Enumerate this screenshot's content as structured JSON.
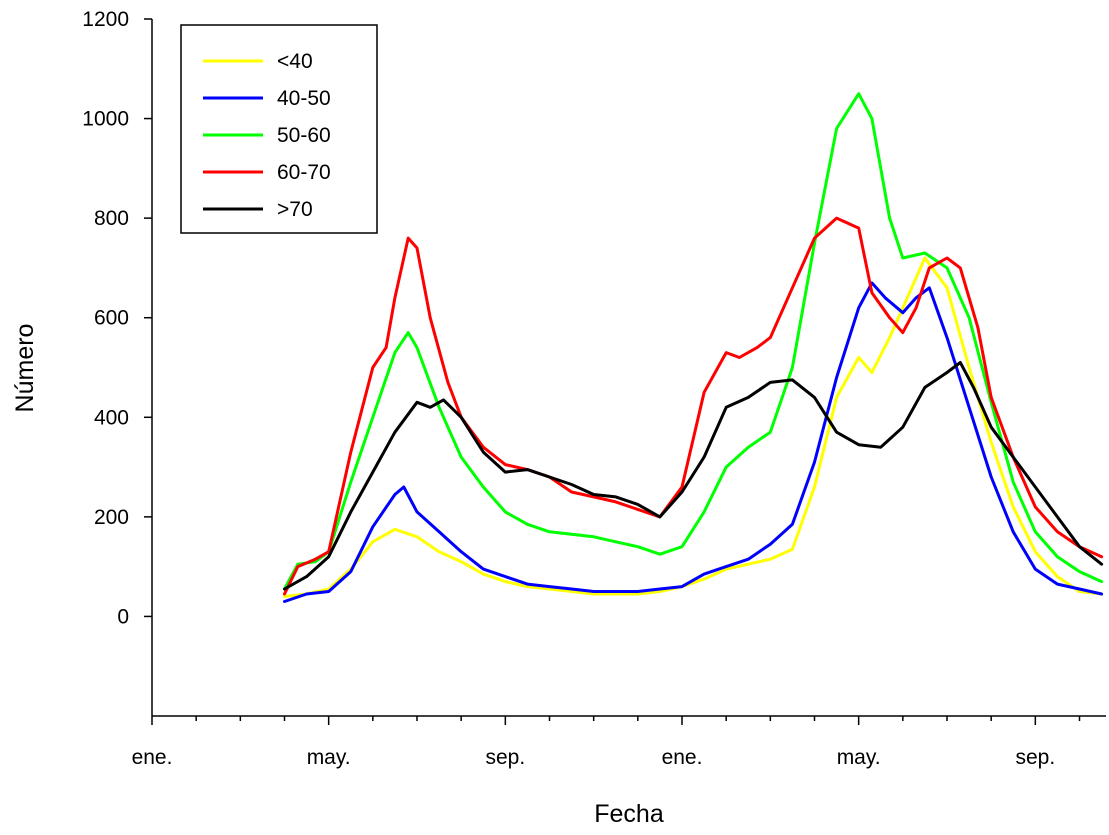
{
  "chart_data": {
    "type": "line",
    "xlabel": "Fecha",
    "ylabel": "Número",
    "ylim": [
      -200,
      1200
    ],
    "yticks": [
      0,
      200,
      400,
      600,
      800,
      1000,
      1200
    ],
    "xtick_labels": [
      "ene.",
      "may.",
      "sep.",
      "ene.",
      "may.",
      "sep."
    ],
    "x_unit": "months since first January",
    "xlim": [
      0,
      21.6
    ],
    "legend_position": "top-left",
    "series": [
      {
        "name": "<40",
        "color": "#ffff00",
        "points": [
          [
            3,
            40
          ],
          [
            3.5,
            45
          ],
          [
            4,
            55
          ],
          [
            4.5,
            95
          ],
          [
            5,
            150
          ],
          [
            5.5,
            175
          ],
          [
            6,
            160
          ],
          [
            6.5,
            130
          ],
          [
            7,
            110
          ],
          [
            7.5,
            85
          ],
          [
            8,
            70
          ],
          [
            8.5,
            60
          ],
          [
            9,
            55
          ],
          [
            9.5,
            50
          ],
          [
            10,
            45
          ],
          [
            10.5,
            45
          ],
          [
            11,
            45
          ],
          [
            11.5,
            50
          ],
          [
            12,
            60
          ],
          [
            12.5,
            75
          ],
          [
            13,
            95
          ],
          [
            13.5,
            105
          ],
          [
            14,
            115
          ],
          [
            14.5,
            135
          ],
          [
            15,
            260
          ],
          [
            15.5,
            440
          ],
          [
            16,
            520
          ],
          [
            16.3,
            490
          ],
          [
            16.7,
            560
          ],
          [
            17,
            620
          ],
          [
            17.5,
            720
          ],
          [
            18,
            660
          ],
          [
            18.5,
            500
          ],
          [
            19,
            350
          ],
          [
            19.5,
            220
          ],
          [
            20,
            130
          ],
          [
            20.5,
            80
          ],
          [
            21,
            50
          ],
          [
            21.5,
            45
          ]
        ]
      },
      {
        "name": "40-50",
        "color": "#0000ff",
        "points": [
          [
            3,
            30
          ],
          [
            3.5,
            45
          ],
          [
            4,
            50
          ],
          [
            4.5,
            90
          ],
          [
            5,
            180
          ],
          [
            5.5,
            245
          ],
          [
            5.7,
            260
          ],
          [
            6,
            210
          ],
          [
            6.5,
            170
          ],
          [
            7,
            130
          ],
          [
            7.5,
            95
          ],
          [
            8,
            80
          ],
          [
            8.5,
            65
          ],
          [
            9,
            60
          ],
          [
            9.5,
            55
          ],
          [
            10,
            50
          ],
          [
            10.5,
            50
          ],
          [
            11,
            50
          ],
          [
            11.5,
            55
          ],
          [
            12,
            60
          ],
          [
            12.5,
            85
          ],
          [
            13,
            100
          ],
          [
            13.5,
            115
          ],
          [
            14,
            145
          ],
          [
            14.5,
            185
          ],
          [
            15,
            310
          ],
          [
            15.5,
            480
          ],
          [
            16,
            620
          ],
          [
            16.3,
            670
          ],
          [
            16.6,
            640
          ],
          [
            17,
            610
          ],
          [
            17.3,
            640
          ],
          [
            17.6,
            660
          ],
          [
            18,
            560
          ],
          [
            18.5,
            420
          ],
          [
            19,
            280
          ],
          [
            19.5,
            170
          ],
          [
            20,
            95
          ],
          [
            20.5,
            65
          ],
          [
            21,
            55
          ],
          [
            21.5,
            45
          ]
        ]
      },
      {
        "name": "50-60",
        "color": "#00ff00",
        "points": [
          [
            3,
            55
          ],
          [
            3.3,
            105
          ],
          [
            3.7,
            110
          ],
          [
            4,
            130
          ],
          [
            4.5,
            270
          ],
          [
            5,
            400
          ],
          [
            5.5,
            530
          ],
          [
            5.8,
            570
          ],
          [
            6,
            540
          ],
          [
            6.5,
            420
          ],
          [
            7,
            320
          ],
          [
            7.5,
            260
          ],
          [
            8,
            210
          ],
          [
            8.5,
            185
          ],
          [
            9,
            170
          ],
          [
            9.5,
            165
          ],
          [
            10,
            160
          ],
          [
            10.5,
            150
          ],
          [
            11,
            140
          ],
          [
            11.5,
            125
          ],
          [
            12,
            140
          ],
          [
            12.5,
            210
          ],
          [
            13,
            300
          ],
          [
            13.5,
            340
          ],
          [
            14,
            370
          ],
          [
            14.5,
            500
          ],
          [
            15,
            750
          ],
          [
            15.5,
            980
          ],
          [
            16,
            1050
          ],
          [
            16.3,
            1000
          ],
          [
            16.7,
            800
          ],
          [
            17,
            720
          ],
          [
            17.5,
            730
          ],
          [
            18,
            700
          ],
          [
            18.5,
            600
          ],
          [
            19,
            430
          ],
          [
            19.5,
            270
          ],
          [
            20,
            170
          ],
          [
            20.5,
            120
          ],
          [
            21,
            90
          ],
          [
            21.5,
            70
          ]
        ]
      },
      {
        "name": "60-70",
        "color": "#ff0000",
        "points": [
          [
            3,
            45
          ],
          [
            3.3,
            100
          ],
          [
            3.7,
            115
          ],
          [
            4,
            130
          ],
          [
            4.5,
            330
          ],
          [
            5,
            500
          ],
          [
            5.3,
            540
          ],
          [
            5.5,
            640
          ],
          [
            5.8,
            760
          ],
          [
            6,
            740
          ],
          [
            6.3,
            600
          ],
          [
            6.7,
            470
          ],
          [
            7,
            400
          ],
          [
            7.5,
            340
          ],
          [
            8,
            305
          ],
          [
            8.5,
            295
          ],
          [
            9,
            280
          ],
          [
            9.5,
            250
          ],
          [
            10,
            240
          ],
          [
            10.5,
            230
          ],
          [
            11,
            215
          ],
          [
            11.5,
            200
          ],
          [
            12,
            260
          ],
          [
            12.5,
            450
          ],
          [
            13,
            530
          ],
          [
            13.3,
            520
          ],
          [
            13.7,
            540
          ],
          [
            14,
            560
          ],
          [
            14.5,
            660
          ],
          [
            15,
            760
          ],
          [
            15.5,
            800
          ],
          [
            16,
            780
          ],
          [
            16.3,
            650
          ],
          [
            16.7,
            600
          ],
          [
            17,
            570
          ],
          [
            17.3,
            620
          ],
          [
            17.6,
            700
          ],
          [
            18,
            720
          ],
          [
            18.3,
            700
          ],
          [
            18.7,
            580
          ],
          [
            19,
            440
          ],
          [
            19.5,
            320
          ],
          [
            20,
            220
          ],
          [
            20.5,
            170
          ],
          [
            21,
            140
          ],
          [
            21.5,
            120
          ]
        ]
      },
      {
        "name": ">70",
        "color": "#000000",
        "points": [
          [
            3,
            55
          ],
          [
            3.5,
            80
          ],
          [
            4,
            120
          ],
          [
            4.5,
            210
          ],
          [
            5,
            290
          ],
          [
            5.5,
            370
          ],
          [
            6,
            430
          ],
          [
            6.3,
            420
          ],
          [
            6.6,
            435
          ],
          [
            7,
            400
          ],
          [
            7.5,
            330
          ],
          [
            8,
            290
          ],
          [
            8.5,
            295
          ],
          [
            9,
            280
          ],
          [
            9.5,
            265
          ],
          [
            10,
            245
          ],
          [
            10.5,
            240
          ],
          [
            11,
            225
          ],
          [
            11.5,
            200
          ],
          [
            12,
            250
          ],
          [
            12.5,
            320
          ],
          [
            13,
            420
          ],
          [
            13.5,
            440
          ],
          [
            14,
            470
          ],
          [
            14.5,
            475
          ],
          [
            15,
            440
          ],
          [
            15.5,
            370
          ],
          [
            16,
            345
          ],
          [
            16.5,
            340
          ],
          [
            17,
            380
          ],
          [
            17.5,
            460
          ],
          [
            18,
            490
          ],
          [
            18.3,
            510
          ],
          [
            18.6,
            460
          ],
          [
            19,
            380
          ],
          [
            19.5,
            320
          ],
          [
            20,
            260
          ],
          [
            20.5,
            200
          ],
          [
            21,
            140
          ],
          [
            21.5,
            105
          ]
        ]
      }
    ]
  }
}
